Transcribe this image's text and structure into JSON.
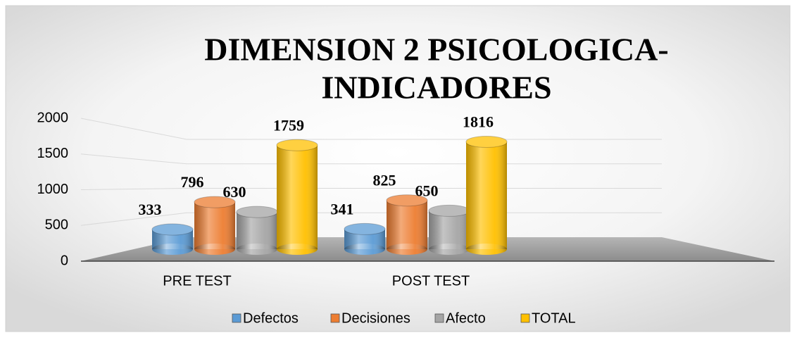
{
  "chart_data": {
    "type": "bar3d",
    "title": "DIMENSION 2 PSICOLOGICA-INDICADORES",
    "title_lines": [
      "DIMENSION 2 PSICOLOGICA-",
      "INDICADORES"
    ],
    "categories": [
      "PRE TEST",
      "POST TEST"
    ],
    "series": [
      {
        "name": "Defectos",
        "color": "#5b9bd5",
        "values": [
          333,
          341
        ]
      },
      {
        "name": "Decisiones",
        "color": "#ed7d31",
        "values": [
          796,
          825
        ]
      },
      {
        "name": "Afecto",
        "color": "#a5a5a5",
        "values": [
          630,
          650
        ]
      },
      {
        "name": "TOTAL",
        "color": "#ffc000",
        "values": [
          1759,
          1816
        ]
      }
    ],
    "ylim": [
      0,
      2000
    ],
    "yticks": [
      0,
      500,
      1000,
      1500,
      2000
    ],
    "grid": true,
    "legend": "bottom"
  }
}
